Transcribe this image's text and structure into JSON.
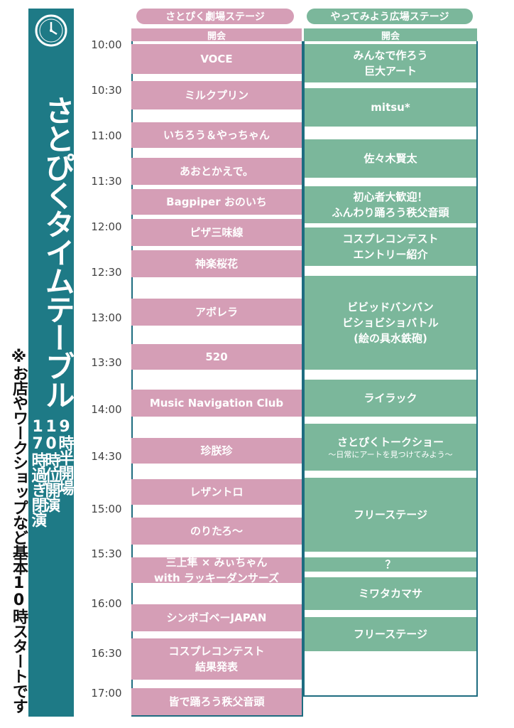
{
  "title": "さとぴくタイムテーブル",
  "hours": [
    "9時半開場",
    "10時位開演",
    "17時過ぎ閉演"
  ],
  "note": "※お店やワークショップなど基本10時スタートです",
  "stages": {
    "left": {
      "name": "さとぴく劇場ステージ",
      "opening": "開会"
    },
    "right": {
      "name": "やってみよう広場ステージ",
      "opening": "開会"
    }
  },
  "times": [
    "10:00",
    "10:30",
    "11:00",
    "11:30",
    "12:00",
    "12:30",
    "13:00",
    "13:30",
    "14:00",
    "14:30",
    "15:00",
    "15:30",
    "16:00",
    "16:30",
    "17:00"
  ],
  "left_blocks": [
    {
      "lines": [
        "VOCE"
      ]
    },
    {
      "lines": [
        "ミルクプリン"
      ]
    },
    {
      "lines": [
        "いちろう＆やっちゃん"
      ]
    },
    {
      "lines": [
        "あおとかえで。"
      ]
    },
    {
      "lines": [
        "Bagpiper おのいち"
      ]
    },
    {
      "lines": [
        "ピザ三味線"
      ]
    },
    {
      "lines": [
        "神楽桜花"
      ]
    },
    {
      "lines": [
        "アボレラ"
      ]
    },
    {
      "lines": [
        "520"
      ]
    },
    {
      "lines": [
        "Music Navigation Club"
      ]
    },
    {
      "lines": [
        "珍朕珍"
      ]
    },
    {
      "lines": [
        "レザントロ"
      ]
    },
    {
      "lines": [
        "のりたろ～"
      ]
    },
    {
      "lines": [
        "三上隼 × みぃちゃん",
        "with ラッキーダンサーズ"
      ]
    },
    {
      "lines": [
        "シンボゴベーJAPAN"
      ]
    },
    {
      "lines": [
        "コスプレコンテスト",
        "結果発表"
      ]
    },
    {
      "lines": [
        "皆で踊ろう秩父音頭"
      ]
    }
  ],
  "right_blocks": [
    {
      "lines": [
        "みんなで作ろう",
        "巨大アート"
      ]
    },
    {
      "lines": [
        "mitsu*"
      ]
    },
    {
      "lines": [
        "佐々木賢太"
      ]
    },
    {
      "lines": [
        "初心者大歓迎！",
        "ふんわり踊ろう秩父音頭"
      ]
    },
    {
      "lines": [
        "コスプレコンテスト",
        "エントリー紹介"
      ]
    },
    {
      "lines": [
        "ビビッドバンバン",
        "ビショビショバトル",
        "(絵の具水鉄砲)"
      ]
    },
    {
      "lines": [
        "ライラック"
      ]
    },
    {
      "lines": [
        "さとぴくトークショー"
      ],
      "sub": "～日常にアートを見つけてみよう～"
    },
    {
      "lines": [
        "フリーステージ"
      ]
    },
    {
      "lines": [
        "？"
      ]
    },
    {
      "lines": [
        "ミワタカマサ"
      ]
    },
    {
      "lines": [
        "フリーステージ"
      ]
    }
  ],
  "colors": {
    "teal": "#1e7a86",
    "pink": "#d59eb6",
    "green": "#7bb79b",
    "frame": "#1e6c80"
  }
}
